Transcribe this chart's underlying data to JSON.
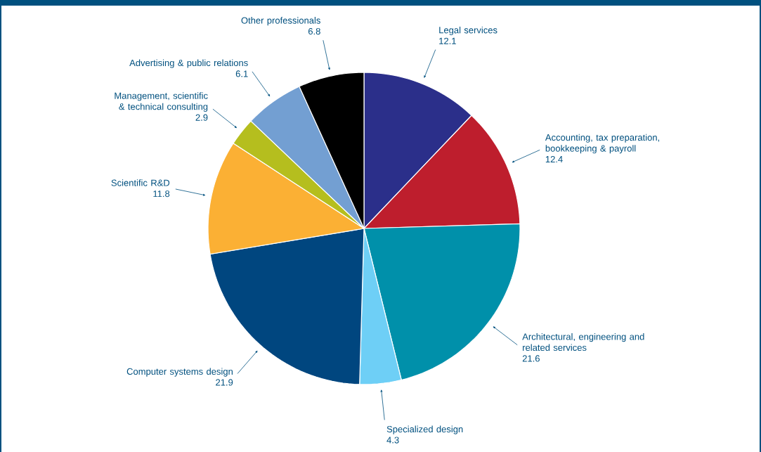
{
  "chart_data": {
    "type": "pie",
    "categories": [
      "Legal services",
      "Accounting, tax preparation, bookkeeping & payroll",
      "Architectural, engineering and related services",
      "Specialized design",
      "Computer systems design",
      "Scientific R&D",
      "Management, scientific & technical consulting",
      "Advertising & public relations",
      "Other professionals"
    ],
    "values": [
      12.1,
      12.4,
      21.6,
      4.3,
      21.9,
      11.8,
      2.9,
      6.1,
      6.8
    ],
    "colors": [
      "#2b2f8a",
      "#be1e2d",
      "#0090aa",
      "#6ecff6",
      "#00467f",
      "#fbb034",
      "#b5be1e",
      "#739fd2",
      "#000000"
    ],
    "data_labels": true
  }
}
